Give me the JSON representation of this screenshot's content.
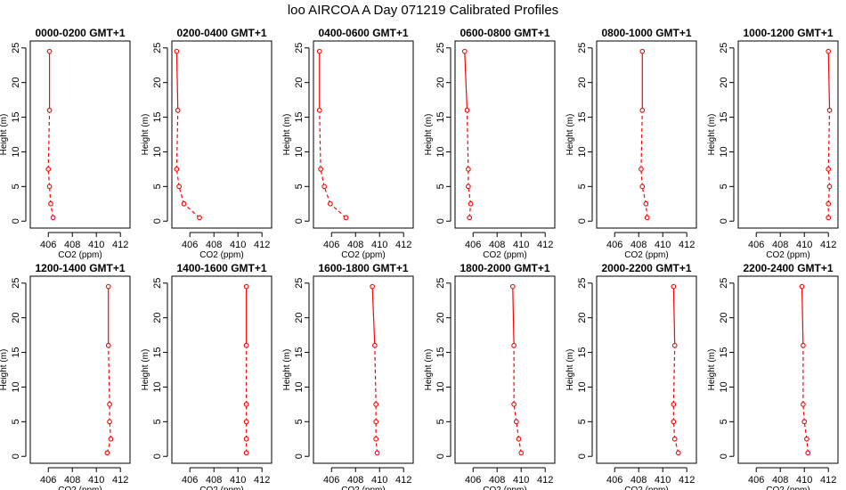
{
  "figure": {
    "title": "loo AIRCOA A  Day 071219  Calibrated Profiles"
  },
  "chart_data": {
    "type": "line",
    "title": "loo AIRCOA A  Day 071219  Calibrated Profiles",
    "xlabel": "CO2 (ppm)",
    "ylabel": "Height (m)",
    "xlim": [
      404.5,
      412.8
    ],
    "ylim": [
      -1,
      26
    ],
    "x_ticks": [
      406,
      408,
      410,
      412
    ],
    "y_ticks": [
      0,
      5,
      10,
      15,
      20,
      25
    ],
    "line_color": "#ff0000",
    "marker": "open-circle",
    "line_style_low": "dashed",
    "line_style_high": "solid",
    "heights": [
      0.5,
      2.5,
      5.0,
      7.5,
      16.0,
      24.5
    ],
    "panels": [
      {
        "title": "0000-0200 GMT+1",
        "co2": [
          406.4,
          406.2,
          406.1,
          406.0,
          406.1,
          406.1
        ]
      },
      {
        "title": "0200-0400 GMT+1",
        "co2": [
          406.8,
          405.5,
          405.1,
          404.9,
          405.0,
          404.9
        ]
      },
      {
        "title": "0400-0600 GMT+1",
        "co2": [
          407.2,
          405.9,
          405.4,
          405.1,
          405.0,
          405.0
        ]
      },
      {
        "title": "0600-0800 GMT+1",
        "co2": [
          405.7,
          405.8,
          405.6,
          405.6,
          405.5,
          405.3
        ]
      },
      {
        "title": "0800-1000 GMT+1",
        "co2": [
          408.7,
          408.6,
          408.3,
          408.2,
          408.3,
          408.3
        ]
      },
      {
        "title": "1000-1200 GMT+1",
        "co2": [
          412.0,
          412.0,
          412.1,
          412.0,
          412.1,
          412.0
        ]
      },
      {
        "title": "1200-1400 GMT+1",
        "co2": [
          410.9,
          411.2,
          411.1,
          411.1,
          411.0,
          411.0
        ]
      },
      {
        "title": "1400-1600 GMT+1",
        "co2": [
          410.7,
          410.7,
          410.7,
          410.7,
          410.7,
          410.7
        ]
      },
      {
        "title": "1600-1800 GMT+1",
        "co2": [
          409.8,
          409.7,
          409.7,
          409.7,
          409.6,
          409.4
        ]
      },
      {
        "title": "1800-2000 GMT+1",
        "co2": [
          410.0,
          409.8,
          409.6,
          409.4,
          409.4,
          409.3
        ]
      },
      {
        "title": "2000-2200 GMT+1",
        "co2": [
          411.3,
          411.0,
          410.9,
          410.9,
          411.0,
          410.9
        ]
      },
      {
        "title": "2200-2400 GMT+1",
        "co2": [
          410.3,
          410.2,
          410.0,
          409.9,
          409.9,
          409.8
        ]
      }
    ]
  }
}
